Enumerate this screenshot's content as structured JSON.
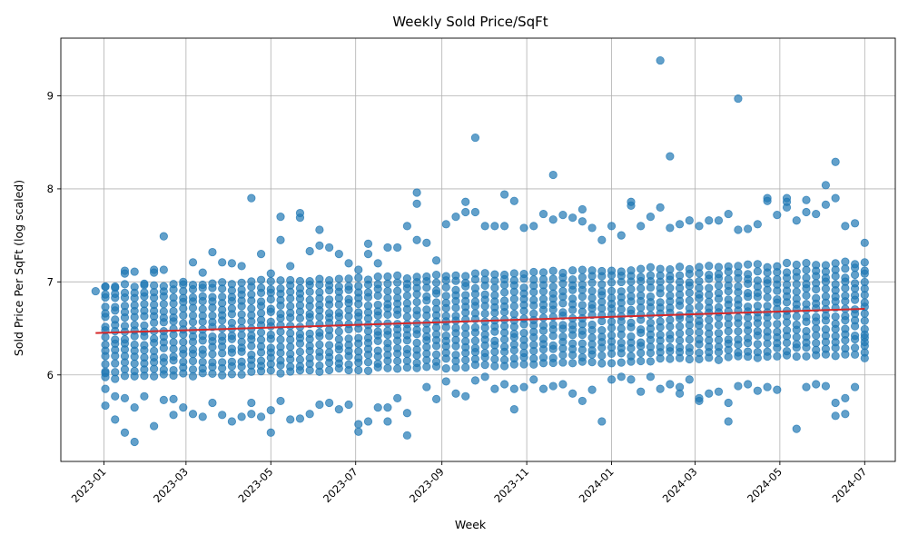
{
  "chart_data": {
    "type": "scatter",
    "title": "Weekly Sold Price/SqFt",
    "xlabel": "Week",
    "ylabel": "Sold Price Per SqFt (log scaled)",
    "xlim": [
      "2022-12-01",
      "2024-07-23"
    ],
    "ylim": [
      5.07,
      9.62
    ],
    "grid": true,
    "x_ticks": [
      "2023-01-01",
      "2023-03-01",
      "2023-05-01",
      "2023-07-01",
      "2023-09-01",
      "2023-11-01",
      "2024-01-01",
      "2024-03-01",
      "2024-05-01",
      "2024-07-01"
    ],
    "x_tick_labels": [
      "2023-01",
      "2023-03",
      "2023-05",
      "2023-07",
      "2023-09",
      "2023-11",
      "2024-01",
      "2024-03",
      "2024-05",
      "2024-07"
    ],
    "y_ticks": [
      6,
      7,
      8,
      9
    ],
    "y_tick_labels": [
      "6",
      "7",
      "8",
      "9"
    ],
    "week_range": [
      "2022-12-26",
      "2024-07-01"
    ],
    "series": [
      {
        "color": "#1f77b4",
        "points": [
          [
            "2022-12-26",
            6.9
          ],
          [
            "2023-01-02",
            6.95
          ],
          [
            "2023-01-02",
            5.67
          ],
          [
            "2023-01-02",
            5.85
          ],
          [
            "2023-01-02",
            6.02
          ],
          [
            "2023-01-09",
            6.95
          ],
          [
            "2023-01-09",
            5.52
          ],
          [
            "2023-01-09",
            5.77
          ],
          [
            "2023-01-16",
            7.12
          ],
          [
            "2023-01-16",
            7.09
          ],
          [
            "2023-01-16",
            5.38
          ],
          [
            "2023-01-16",
            5.75
          ],
          [
            "2023-01-23",
            7.11
          ],
          [
            "2023-01-23",
            5.28
          ],
          [
            "2023-01-23",
            5.65
          ],
          [
            "2023-01-30",
            6.98
          ],
          [
            "2023-01-30",
            5.77
          ],
          [
            "2023-02-06",
            7.13
          ],
          [
            "2023-02-06",
            7.1
          ],
          [
            "2023-02-06",
            5.45
          ],
          [
            "2023-02-13",
            7.49
          ],
          [
            "2023-02-13",
            7.13
          ],
          [
            "2023-02-13",
            5.73
          ],
          [
            "2023-02-20",
            5.57
          ],
          [
            "2023-02-20",
            5.74
          ],
          [
            "2023-02-27",
            7.0
          ],
          [
            "2023-02-27",
            5.65
          ],
          [
            "2023-03-06",
            7.21
          ],
          [
            "2023-03-06",
            5.58
          ],
          [
            "2023-03-13",
            7.1
          ],
          [
            "2023-03-13",
            5.55
          ],
          [
            "2023-03-20",
            7.32
          ],
          [
            "2023-03-20",
            5.7
          ],
          [
            "2023-03-27",
            7.21
          ],
          [
            "2023-03-27",
            5.57
          ],
          [
            "2023-04-03",
            7.2
          ],
          [
            "2023-04-03",
            5.5
          ],
          [
            "2023-04-10",
            7.17
          ],
          [
            "2023-04-10",
            5.55
          ],
          [
            "2023-04-17",
            7.9
          ],
          [
            "2023-04-17",
            5.7
          ],
          [
            "2023-04-17",
            5.58
          ],
          [
            "2023-04-24",
            7.3
          ],
          [
            "2023-04-24",
            5.55
          ],
          [
            "2023-05-01",
            7.09
          ],
          [
            "2023-05-01",
            5.38
          ],
          [
            "2023-05-01",
            5.62
          ],
          [
            "2023-05-08",
            7.7
          ],
          [
            "2023-05-08",
            7.45
          ],
          [
            "2023-05-08",
            5.72
          ],
          [
            "2023-05-15",
            7.17
          ],
          [
            "2023-05-15",
            5.52
          ],
          [
            "2023-05-22",
            7.74
          ],
          [
            "2023-05-22",
            7.69
          ],
          [
            "2023-05-22",
            5.53
          ],
          [
            "2023-05-29",
            7.33
          ],
          [
            "2023-05-29",
            5.58
          ],
          [
            "2023-06-05",
            7.56
          ],
          [
            "2023-06-05",
            7.39
          ],
          [
            "2023-06-05",
            5.68
          ],
          [
            "2023-06-12",
            7.37
          ],
          [
            "2023-06-12",
            5.7
          ],
          [
            "2023-06-19",
            7.3
          ],
          [
            "2023-06-19",
            5.63
          ],
          [
            "2023-06-26",
            7.2
          ],
          [
            "2023-06-26",
            5.68
          ],
          [
            "2023-07-03",
            7.13
          ],
          [
            "2023-07-03",
            5.39
          ],
          [
            "2023-07-03",
            5.47
          ],
          [
            "2023-07-10",
            7.41
          ],
          [
            "2023-07-10",
            7.3
          ],
          [
            "2023-07-10",
            5.5
          ],
          [
            "2023-07-17",
            7.2
          ],
          [
            "2023-07-17",
            5.65
          ],
          [
            "2023-07-24",
            7.37
          ],
          [
            "2023-07-24",
            5.5
          ],
          [
            "2023-07-24",
            5.65
          ],
          [
            "2023-07-31",
            7.37
          ],
          [
            "2023-07-31",
            5.75
          ],
          [
            "2023-08-07",
            7.6
          ],
          [
            "2023-08-07",
            5.35
          ],
          [
            "2023-08-07",
            5.59
          ],
          [
            "2023-08-14",
            7.96
          ],
          [
            "2023-08-14",
            7.84
          ],
          [
            "2023-08-14",
            7.45
          ],
          [
            "2023-08-21",
            7.42
          ],
          [
            "2023-08-21",
            5.87
          ],
          [
            "2023-08-28",
            7.23
          ],
          [
            "2023-08-28",
            5.74
          ],
          [
            "2023-09-04",
            7.62
          ],
          [
            "2023-09-04",
            5.93
          ],
          [
            "2023-09-11",
            7.7
          ],
          [
            "2023-09-11",
            5.8
          ],
          [
            "2023-09-18",
            7.86
          ],
          [
            "2023-09-18",
            7.75
          ],
          [
            "2023-09-18",
            5.77
          ],
          [
            "2023-09-25",
            8.55
          ],
          [
            "2023-09-25",
            7.75
          ],
          [
            "2023-09-25",
            5.94
          ],
          [
            "2023-10-02",
            7.6
          ],
          [
            "2023-10-02",
            5.98
          ],
          [
            "2023-10-09",
            7.6
          ],
          [
            "2023-10-09",
            5.85
          ],
          [
            "2023-10-16",
            7.94
          ],
          [
            "2023-10-16",
            7.6
          ],
          [
            "2023-10-16",
            5.9
          ],
          [
            "2023-10-23",
            7.87
          ],
          [
            "2023-10-23",
            5.63
          ],
          [
            "2023-10-23",
            5.85
          ],
          [
            "2023-10-30",
            7.58
          ],
          [
            "2023-10-30",
            5.87
          ],
          [
            "2023-11-06",
            7.6
          ],
          [
            "2023-11-06",
            5.95
          ],
          [
            "2023-11-13",
            7.73
          ],
          [
            "2023-11-13",
            5.85
          ],
          [
            "2023-11-20",
            8.15
          ],
          [
            "2023-11-20",
            7.67
          ],
          [
            "2023-11-20",
            5.88
          ],
          [
            "2023-11-27",
            7.72
          ],
          [
            "2023-11-27",
            5.9
          ],
          [
            "2023-12-04",
            7.69
          ],
          [
            "2023-12-04",
            5.8
          ],
          [
            "2023-12-11",
            7.78
          ],
          [
            "2023-12-11",
            7.65
          ],
          [
            "2023-12-11",
            5.72
          ],
          [
            "2023-12-18",
            7.58
          ],
          [
            "2023-12-18",
            5.84
          ],
          [
            "2023-12-25",
            7.45
          ],
          [
            "2023-12-25",
            5.5
          ],
          [
            "2024-01-01",
            7.6
          ],
          [
            "2024-01-01",
            5.95
          ],
          [
            "2024-01-08",
            7.5
          ],
          [
            "2024-01-08",
            5.98
          ],
          [
            "2024-01-15",
            7.86
          ],
          [
            "2024-01-15",
            7.82
          ],
          [
            "2024-01-15",
            5.95
          ],
          [
            "2024-01-22",
            7.6
          ],
          [
            "2024-01-22",
            5.82
          ],
          [
            "2024-01-29",
            7.7
          ],
          [
            "2024-01-29",
            5.98
          ],
          [
            "2024-02-05",
            9.38
          ],
          [
            "2024-02-05",
            7.8
          ],
          [
            "2024-02-05",
            5.85
          ],
          [
            "2024-02-12",
            8.35
          ],
          [
            "2024-02-12",
            7.58
          ],
          [
            "2024-02-12",
            5.9
          ],
          [
            "2024-02-19",
            7.62
          ],
          [
            "2024-02-19",
            5.8
          ],
          [
            "2024-02-19",
            5.87
          ],
          [
            "2024-02-26",
            7.66
          ],
          [
            "2024-02-26",
            5.95
          ],
          [
            "2024-03-04",
            7.6
          ],
          [
            "2024-03-04",
            5.72
          ],
          [
            "2024-03-04",
            5.75
          ],
          [
            "2024-03-11",
            7.66
          ],
          [
            "2024-03-11",
            5.8
          ],
          [
            "2024-03-18",
            7.66
          ],
          [
            "2024-03-18",
            5.82
          ],
          [
            "2024-03-25",
            7.73
          ],
          [
            "2024-03-25",
            5.5
          ],
          [
            "2024-03-25",
            5.7
          ],
          [
            "2024-04-01",
            8.97
          ],
          [
            "2024-04-01",
            7.56
          ],
          [
            "2024-04-01",
            5.88
          ],
          [
            "2024-04-08",
            7.57
          ],
          [
            "2024-04-08",
            5.9
          ],
          [
            "2024-04-15",
            7.62
          ],
          [
            "2024-04-15",
            5.83
          ],
          [
            "2024-04-22",
            7.9
          ],
          [
            "2024-04-22",
            7.87
          ],
          [
            "2024-04-22",
            5.87
          ],
          [
            "2024-04-29",
            7.72
          ],
          [
            "2024-04-29",
            5.84
          ],
          [
            "2024-05-06",
            7.9
          ],
          [
            "2024-05-06",
            7.86
          ],
          [
            "2024-05-06",
            7.8
          ],
          [
            "2024-05-13",
            7.66
          ],
          [
            "2024-05-13",
            5.42
          ],
          [
            "2024-05-20",
            7.88
          ],
          [
            "2024-05-20",
            7.75
          ],
          [
            "2024-05-20",
            5.87
          ],
          [
            "2024-05-27",
            7.73
          ],
          [
            "2024-05-27",
            5.9
          ],
          [
            "2024-06-03",
            8.04
          ],
          [
            "2024-06-03",
            7.83
          ],
          [
            "2024-06-03",
            5.88
          ],
          [
            "2024-06-10",
            8.29
          ],
          [
            "2024-06-10",
            7.9
          ],
          [
            "2024-06-10",
            5.56
          ],
          [
            "2024-06-10",
            5.7
          ],
          [
            "2024-06-17",
            7.6
          ],
          [
            "2024-06-17",
            5.58
          ],
          [
            "2024-06-17",
            5.75
          ],
          [
            "2024-06-24",
            7.63
          ],
          [
            "2024-06-24",
            5.87
          ],
          [
            "2024-07-01",
            7.42
          ],
          [
            "2024-07-01",
            6.18
          ],
          [
            "2024-07-01",
            6.4
          ]
        ]
      },
      {
        "type": "line",
        "color": "#d62728",
        "x": [
          "2022-12-26",
          "2024-07-01"
        ],
        "y": [
          6.45,
          6.71
        ]
      }
    ]
  }
}
